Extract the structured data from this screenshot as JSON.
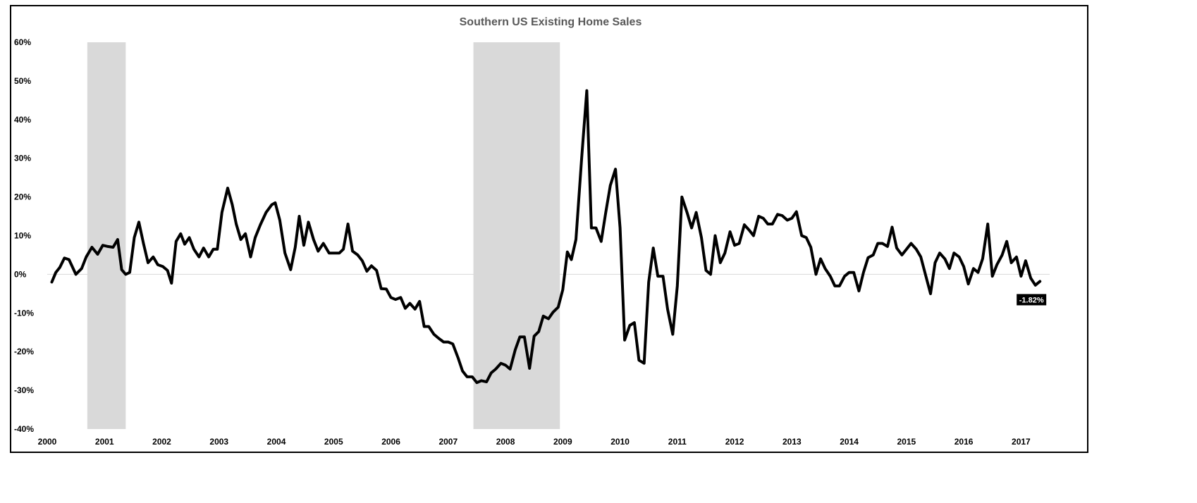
{
  "chart_data": {
    "type": "line",
    "title": "Southern US Existing Home Sales",
    "xlabel": "",
    "ylabel": "",
    "ylim": [
      -40,
      60
    ],
    "y_ticks": [
      60,
      50,
      40,
      30,
      20,
      10,
      0,
      -10,
      -20,
      -30,
      -40
    ],
    "y_tick_labels": [
      "60%",
      "50%",
      "40%",
      "30%",
      "20%",
      "10%",
      "0%",
      "-10%",
      "-20%",
      "-30%",
      "-40%"
    ],
    "x_tick_labels": [
      "2000",
      "2001",
      "2002",
      "2003",
      "2004",
      "2005",
      "2006",
      "2007",
      "2008",
      "2009",
      "2010",
      "2011",
      "2012",
      "2013",
      "2014",
      "2015",
      "2016",
      "2017"
    ],
    "x_range": [
      2000.0,
      2017.5
    ],
    "grid": false,
    "zero_line": true,
    "line_color": "#000000",
    "shade_color": "#d9d9d9",
    "shaded_periods": [
      {
        "start": 2000.7,
        "end": 2001.37
      },
      {
        "start": 2007.44,
        "end": 2008.95
      }
    ],
    "last_value_label": "-1.82%",
    "series": [
      {
        "values": [
          [
            2000.08,
            -2
          ],
          [
            2000.15,
            0.5
          ],
          [
            2000.22,
            1.8
          ],
          [
            2000.3,
            4.2
          ],
          [
            2000.38,
            3.8
          ],
          [
            2000.5,
            0
          ],
          [
            2000.6,
            1.5
          ],
          [
            2000.68,
            4.5
          ],
          [
            2000.78,
            7
          ],
          [
            2000.88,
            5.2
          ],
          [
            2000.97,
            7.5
          ],
          [
            2001.06,
            7.2
          ],
          [
            2001.15,
            7
          ],
          [
            2001.23,
            9
          ],
          [
            2001.3,
            1.2
          ],
          [
            2001.37,
            0
          ],
          [
            2001.44,
            0.5
          ],
          [
            2001.52,
            9.5
          ],
          [
            2001.6,
            13.5
          ],
          [
            2001.68,
            8
          ],
          [
            2001.76,
            3
          ],
          [
            2001.85,
            4.5
          ],
          [
            2001.93,
            2.5
          ],
          [
            2002.02,
            2
          ],
          [
            2002.1,
            1
          ],
          [
            2002.17,
            -2.3
          ],
          [
            2002.25,
            8.5
          ],
          [
            2002.33,
            10.5
          ],
          [
            2002.4,
            7.8
          ],
          [
            2002.48,
            9.5
          ],
          [
            2002.56,
            6.5
          ],
          [
            2002.65,
            4.5
          ],
          [
            2002.73,
            6.8
          ],
          [
            2002.82,
            4.5
          ],
          [
            2002.9,
            6.5
          ],
          [
            2002.97,
            6.5
          ],
          [
            2003.05,
            16
          ],
          [
            2003.15,
            22.3
          ],
          [
            2003.23,
            18
          ],
          [
            2003.3,
            13
          ],
          [
            2003.38,
            9
          ],
          [
            2003.46,
            10.5
          ],
          [
            2003.55,
            4.5
          ],
          [
            2003.63,
            9.5
          ],
          [
            2003.72,
            12.8
          ],
          [
            2003.82,
            16
          ],
          [
            2003.92,
            18
          ],
          [
            2003.98,
            18.5
          ],
          [
            2004.06,
            14
          ],
          [
            2004.15,
            5.5
          ],
          [
            2004.25,
            1.2
          ],
          [
            2004.33,
            7
          ],
          [
            2004.4,
            15
          ],
          [
            2004.48,
            7.5
          ],
          [
            2004.56,
            13.5
          ],
          [
            2004.65,
            9
          ],
          [
            2004.73,
            6
          ],
          [
            2004.82,
            8
          ],
          [
            2004.92,
            5.5
          ],
          [
            2005.0,
            5.5
          ],
          [
            2005.1,
            5.5
          ],
          [
            2005.17,
            6.5
          ],
          [
            2005.25,
            13
          ],
          [
            2005.33,
            6
          ],
          [
            2005.42,
            5
          ],
          [
            2005.5,
            3.5
          ],
          [
            2005.58,
            0.8
          ],
          [
            2005.66,
            2.2
          ],
          [
            2005.75,
            1
          ],
          [
            2005.83,
            -3.7
          ],
          [
            2005.92,
            -3.8
          ],
          [
            2006.0,
            -6
          ],
          [
            2006.08,
            -6.5
          ],
          [
            2006.17,
            -6
          ],
          [
            2006.25,
            -8.8
          ],
          [
            2006.33,
            -7.5
          ],
          [
            2006.42,
            -9
          ],
          [
            2006.5,
            -7
          ],
          [
            2006.58,
            -13.5
          ],
          [
            2006.66,
            -13.5
          ],
          [
            2006.75,
            -15.5
          ],
          [
            2006.83,
            -16.5
          ],
          [
            2006.92,
            -17.5
          ],
          [
            2007.0,
            -17.5
          ],
          [
            2007.08,
            -18
          ],
          [
            2007.17,
            -21.5
          ],
          [
            2007.25,
            -25
          ],
          [
            2007.33,
            -26.5
          ],
          [
            2007.42,
            -26.5
          ],
          [
            2007.5,
            -28
          ],
          [
            2007.58,
            -27.5
          ],
          [
            2007.67,
            -27.8
          ],
          [
            2007.75,
            -25.5
          ],
          [
            2007.83,
            -24.5
          ],
          [
            2007.92,
            -23
          ],
          [
            2008.0,
            -23.5
          ],
          [
            2008.08,
            -24.5
          ],
          [
            2008.17,
            -19.5
          ],
          [
            2008.25,
            -16.2
          ],
          [
            2008.33,
            -16.2
          ],
          [
            2008.42,
            -24.3
          ],
          [
            2008.5,
            -16
          ],
          [
            2008.58,
            -14.8
          ],
          [
            2008.66,
            -10.8
          ],
          [
            2008.75,
            -11.5
          ],
          [
            2008.83,
            -9.8
          ],
          [
            2008.92,
            -8.5
          ],
          [
            2009.0,
            -4
          ],
          [
            2009.08,
            5.8
          ],
          [
            2009.15,
            3.8
          ],
          [
            2009.23,
            9
          ],
          [
            2009.33,
            30
          ],
          [
            2009.42,
            47.5
          ],
          [
            2009.5,
            12
          ],
          [
            2009.58,
            12
          ],
          [
            2009.67,
            8.5
          ],
          [
            2009.75,
            16
          ],
          [
            2009.83,
            23
          ],
          [
            2009.92,
            27.2
          ],
          [
            2010.0,
            12
          ],
          [
            2010.08,
            -17
          ],
          [
            2010.17,
            -13.2
          ],
          [
            2010.25,
            -12.5
          ],
          [
            2010.33,
            -22.2
          ],
          [
            2010.42,
            -23
          ],
          [
            2010.5,
            -2
          ],
          [
            2010.58,
            6.8
          ],
          [
            2010.66,
            -0.5
          ],
          [
            2010.75,
            -0.5
          ],
          [
            2010.83,
            -9
          ],
          [
            2010.92,
            -15.5
          ],
          [
            2011.0,
            -3
          ],
          [
            2011.08,
            20
          ],
          [
            2011.17,
            16
          ],
          [
            2011.25,
            12
          ],
          [
            2011.33,
            16
          ],
          [
            2011.42,
            9.5
          ],
          [
            2011.5,
            1
          ],
          [
            2011.58,
            0
          ],
          [
            2011.66,
            10
          ],
          [
            2011.75,
            3
          ],
          [
            2011.83,
            5.5
          ],
          [
            2011.92,
            11
          ],
          [
            2012.0,
            7.5
          ],
          [
            2012.08,
            8
          ],
          [
            2012.17,
            12.8
          ],
          [
            2012.25,
            11.5
          ],
          [
            2012.33,
            10
          ],
          [
            2012.42,
            15
          ],
          [
            2012.5,
            14.5
          ],
          [
            2012.58,
            13
          ],
          [
            2012.66,
            13
          ],
          [
            2012.75,
            15.5
          ],
          [
            2012.83,
            15.2
          ],
          [
            2012.92,
            14
          ],
          [
            2013.0,
            14.5
          ],
          [
            2013.08,
            16.2
          ],
          [
            2013.17,
            10
          ],
          [
            2013.25,
            9.5
          ],
          [
            2013.33,
            7
          ],
          [
            2013.42,
            0
          ],
          [
            2013.5,
            4
          ],
          [
            2013.58,
            1.5
          ],
          [
            2013.67,
            -0.5
          ],
          [
            2013.75,
            -3
          ],
          [
            2013.83,
            -3
          ],
          [
            2013.92,
            -0.5
          ],
          [
            2014.0,
            0.5
          ],
          [
            2014.08,
            0.5
          ],
          [
            2014.17,
            -4.3
          ],
          [
            2014.25,
            0.5
          ],
          [
            2014.33,
            4.3
          ],
          [
            2014.42,
            5
          ],
          [
            2014.5,
            8
          ],
          [
            2014.58,
            8
          ],
          [
            2014.67,
            7.2
          ],
          [
            2014.75,
            12.2
          ],
          [
            2014.83,
            6.8
          ],
          [
            2014.92,
            5
          ],
          [
            2015.0,
            6.5
          ],
          [
            2015.08,
            8
          ],
          [
            2015.17,
            6.5
          ],
          [
            2015.25,
            4.5
          ],
          [
            2015.33,
            0
          ],
          [
            2015.42,
            -5
          ],
          [
            2015.5,
            3
          ],
          [
            2015.58,
            5.5
          ],
          [
            2015.67,
            4
          ],
          [
            2015.75,
            1.5
          ],
          [
            2015.83,
            5.5
          ],
          [
            2015.92,
            4.5
          ],
          [
            2016.0,
            2
          ],
          [
            2016.08,
            -2.5
          ],
          [
            2016.17,
            1.5
          ],
          [
            2016.25,
            0.5
          ],
          [
            2016.33,
            4
          ],
          [
            2016.42,
            13
          ],
          [
            2016.5,
            -0.5
          ],
          [
            2016.58,
            2.5
          ],
          [
            2016.67,
            5
          ],
          [
            2016.75,
            8.5
          ],
          [
            2016.83,
            3
          ],
          [
            2016.92,
            4.5
          ],
          [
            2017.0,
            -0.5
          ],
          [
            2017.08,
            3.5
          ],
          [
            2017.17,
            -1
          ],
          [
            2017.25,
            -2.8
          ],
          [
            2017.33,
            -1.82
          ]
        ]
      }
    ]
  }
}
